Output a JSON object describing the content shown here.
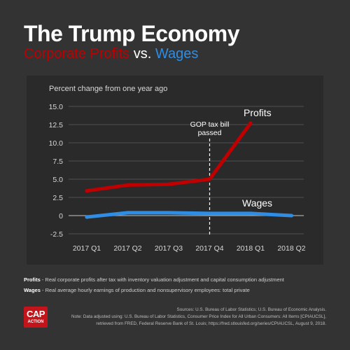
{
  "title": "The Trump Economy",
  "subtitle": {
    "profits": "Corporate Profits",
    "vs": "vs.",
    "wages": "Wages"
  },
  "chart_data": {
    "type": "line",
    "title": "The Trump Economy",
    "ylabel": "Percent change from one year ago",
    "categories": [
      "2017 Q1",
      "2017 Q2",
      "2017 Q3",
      "2017 Q4",
      "2018 Q1",
      "2018 Q2"
    ],
    "yticks": [
      "15.0",
      "12.5",
      "10.0",
      "7.5",
      "5.0",
      "2.5",
      "0",
      "-2.5"
    ],
    "ylim": [
      -2.5,
      15
    ],
    "grid": true,
    "series": [
      {
        "name": "Profits",
        "color": "#c00000",
        "points": [
          [
            0,
            3.4
          ],
          [
            1,
            4.2
          ],
          [
            2,
            4.3
          ],
          [
            3,
            5.0
          ],
          [
            4,
            12.7
          ]
        ]
      },
      {
        "name": "Wages",
        "color": "#2f8de4",
        "points": [
          [
            0,
            -0.2
          ],
          [
            1,
            0.4
          ],
          [
            2,
            0.4
          ],
          [
            3,
            0.3
          ],
          [
            4,
            0.3
          ],
          [
            5,
            0.0
          ]
        ]
      }
    ],
    "annotation": {
      "lines": [
        "GOP tax bill",
        "passed"
      ],
      "x": 3
    }
  },
  "notes": {
    "profits_label": "Profits",
    "profits_text": " - Real corporate profits after tax with inventory valuation adjustment and capital consumption adjustment",
    "wages_label": "Wages",
    "wages_text": " - Real average hourly earnings of production and nonsupervisory employees: total private"
  },
  "sources": {
    "line1": "Sources: U.S. Bureau of Labor Statistics; U.S. Bureau of Economic Analysis.",
    "line2": "Note: Data adjusted using: U.S. Bureau of Labor Statistics, Consumer Price Index for All Urban Consumers: All Items [CPIAUCSL],",
    "line3": "retrieved from FRED, Federal Reserve Bank of St. Louis; https://fred.stlouisfed.org/series/CPIAUCSL, August 9, 2018."
  },
  "logo": {
    "line1": "CAP",
    "line2": "ACTION"
  }
}
